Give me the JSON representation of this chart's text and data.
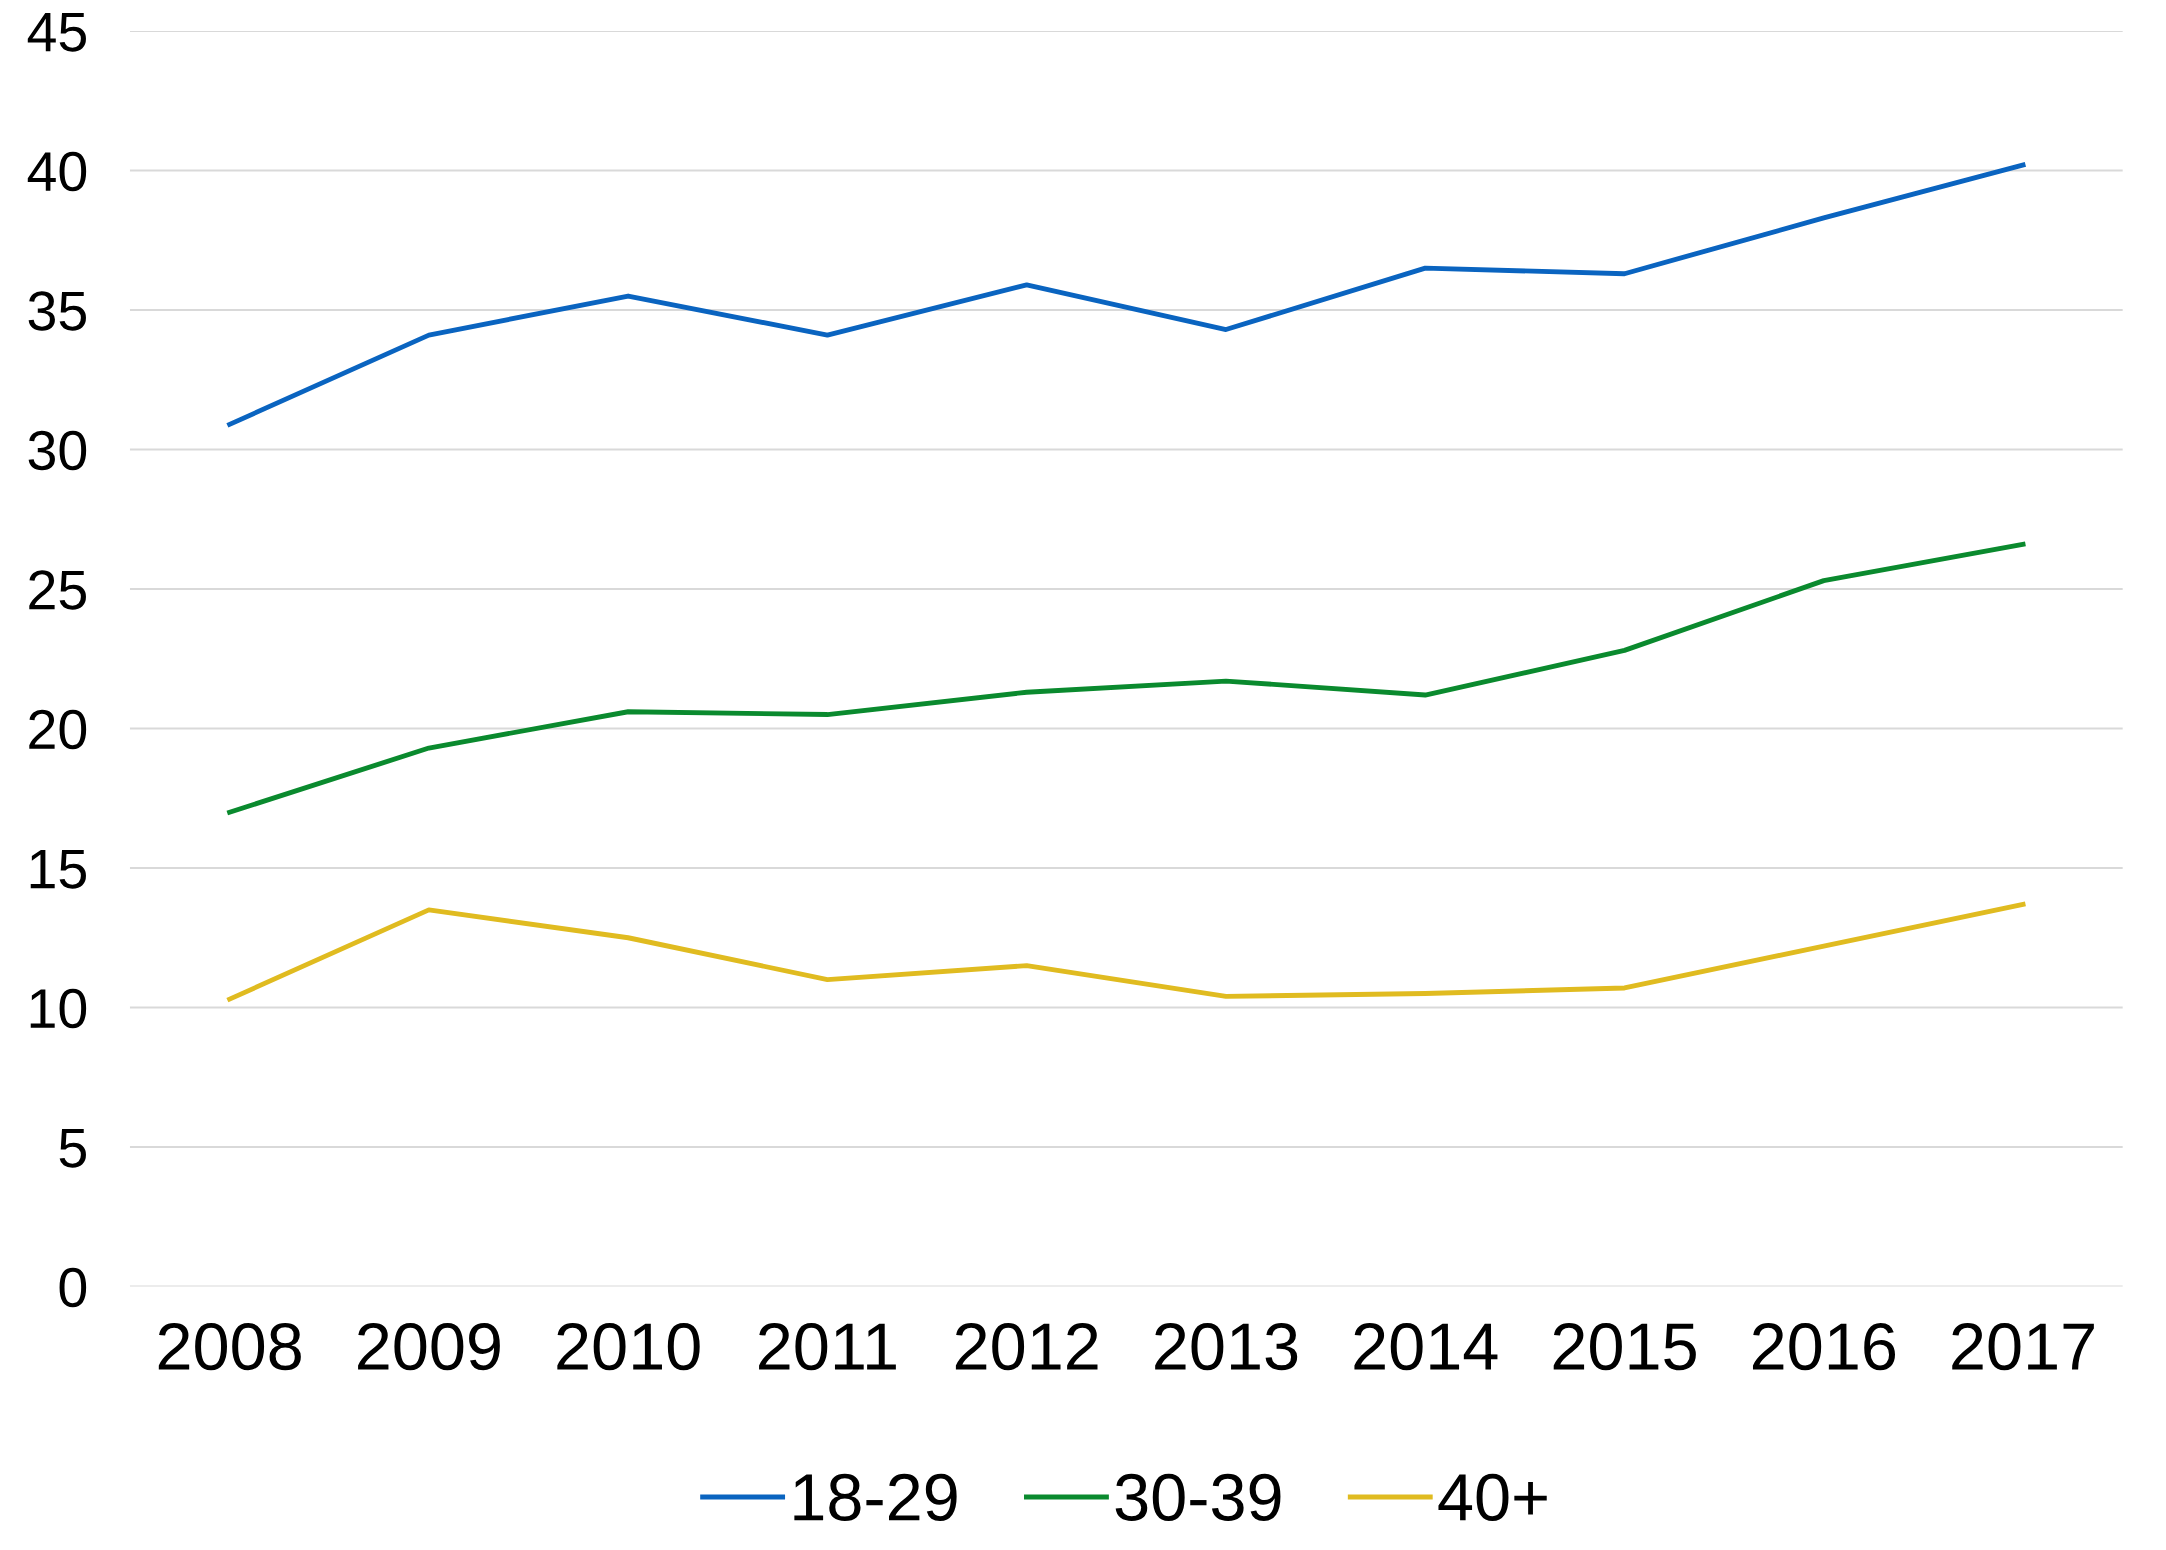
{
  "chart_data": {
    "type": "line",
    "categories": [
      "2008",
      "2009",
      "2010",
      "2011",
      "2012",
      "2013",
      "2014",
      "2015",
      "2016",
      "2017"
    ],
    "series": [
      {
        "name": "18-29",
        "color": "#0a64c0",
        "values": [
          30.9,
          34.1,
          35.5,
          34.1,
          35.9,
          34.3,
          36.5,
          36.3,
          38.3,
          40.2
        ]
      },
      {
        "name": "30-39",
        "color": "#0a8a2e",
        "values": [
          17.0,
          19.3,
          20.6,
          20.5,
          21.3,
          21.7,
          21.2,
          22.8,
          25.3,
          26.6
        ]
      },
      {
        "name": "40+",
        "color": "#e0bb20",
        "values": [
          10.3,
          13.5,
          12.5,
          11.0,
          11.5,
          10.4,
          10.5,
          10.7,
          12.2,
          13.7
        ]
      }
    ],
    "ylim": [
      0,
      45
    ],
    "yticks": [
      0,
      5,
      10,
      15,
      20,
      25,
      30,
      35,
      40,
      45
    ],
    "grid": "y",
    "legend": "bottom",
    "marker": "none",
    "line_style": "solid"
  }
}
